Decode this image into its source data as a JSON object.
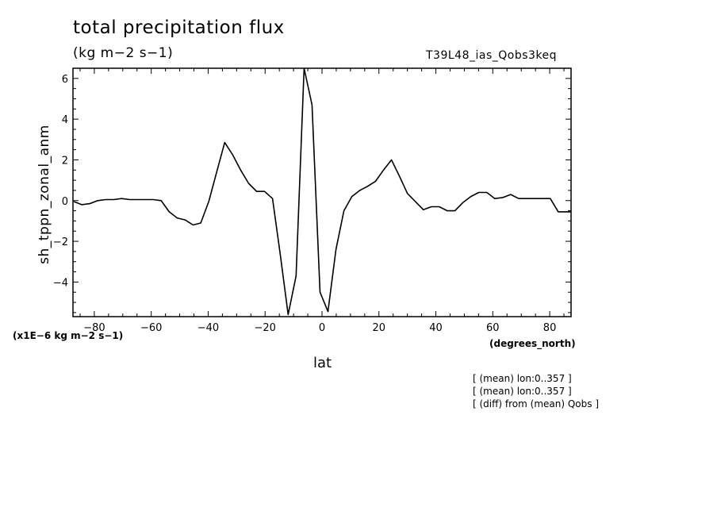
{
  "header": {
    "title": "total precipitation flux",
    "units": "(kg m−2 s−1)",
    "run_id": "T39L48_ias_Qobs3keq"
  },
  "axes": {
    "ylabel": "sh_tppn_zonal_anm",
    "scale_note": "(x1E−6 kg m−2 s−1)",
    "xlabel": "lat",
    "xunits": "(degrees_north)"
  },
  "notes": [
    "[ (mean) lon:0..357 ]",
    "[ (mean) lon:0..357 ]",
    "[ (diff) from (mean) Qobs ]"
  ],
  "chart_data": {
    "type": "line",
    "title": "total precipitation flux",
    "xlabel": "lat",
    "ylabel": "sh_tppn_zonal_anm",
    "xlim": [
      -87.5,
      87.5
    ],
    "ylim": [
      -5.7,
      6.5
    ],
    "x_ticks": [
      -80,
      -60,
      -40,
      -20,
      0,
      20,
      40,
      60,
      80
    ],
    "x_tick_labels": [
      "−80",
      "−60",
      "−40",
      "−20",
      "0",
      "20",
      "40",
      "60",
      "80"
    ],
    "y_ticks": [
      -4,
      -2,
      0,
      2,
      4,
      6
    ],
    "y_tick_labels": [
      "−4",
      "−2",
      "0",
      "2",
      "4",
      "6"
    ],
    "grid": false,
    "series": [
      {
        "x": [
          -87.2,
          -84.4,
          -81.6,
          -78.8,
          -76.0,
          -73.2,
          -70.4,
          -67.6,
          -64.9,
          -62.1,
          -59.3,
          -56.5,
          -53.7,
          -50.9,
          -48.1,
          -45.3,
          -42.6,
          -39.8,
          -37.0,
          -34.2,
          -31.4,
          -28.6,
          -25.8,
          -23.0,
          -20.2,
          -17.4,
          -14.7,
          -11.9,
          -9.1,
          -6.3,
          -3.5,
          -0.7,
          2.1,
          4.9,
          7.7,
          10.5,
          13.3,
          16.0,
          18.8,
          21.6,
          24.4,
          27.2,
          30.0,
          32.8,
          35.6,
          38.4,
          41.2,
          44.0,
          46.7,
          49.5,
          52.3,
          55.1,
          57.9,
          60.7,
          63.5,
          66.3,
          69.1,
          71.9,
          74.6,
          77.4,
          80.2,
          83.0,
          85.8,
          87.5
        ],
        "values": [
          -0.05,
          -0.2,
          -0.15,
          0.0,
          0.05,
          0.05,
          0.1,
          0.05,
          0.05,
          0.05,
          0.05,
          0.0,
          -0.55,
          -0.85,
          -0.95,
          -1.2,
          -1.1,
          -0.05,
          1.4,
          2.85,
          2.25,
          1.5,
          0.85,
          0.45,
          0.45,
          0.1,
          -2.6,
          -5.6,
          -3.7,
          6.5,
          4.7,
          -4.5,
          -5.45,
          -2.4,
          -0.5,
          0.2,
          0.5,
          0.7,
          0.95,
          1.5,
          2.0,
          1.2,
          0.35,
          -0.05,
          -0.45,
          -0.3,
          -0.3,
          -0.5,
          -0.5,
          -0.1,
          0.2,
          0.4,
          0.4,
          0.1,
          0.15,
          0.3,
          0.1,
          0.1,
          0.1,
          0.1,
          0.1,
          -0.55,
          -0.55,
          -0.55
        ]
      }
    ]
  },
  "colors": {
    "line": "#000000",
    "background": "#ffffff"
  }
}
